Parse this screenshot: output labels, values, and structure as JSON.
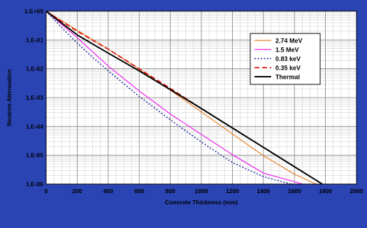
{
  "chart_data": {
    "type": "line",
    "title": "",
    "xlabel": "Concrete Thickness (mm)",
    "ylabel": "Neutron Attenuation",
    "xlim": [
      0,
      2000
    ],
    "x_ticks": [
      0,
      200,
      400,
      600,
      800,
      1000,
      1200,
      1400,
      1600,
      1800,
      2000
    ],
    "x_tick_labels": [
      "0",
      "200",
      "400",
      "600",
      "800",
      "1000",
      "1200",
      "1400",
      "1600",
      "1800",
      "2000"
    ],
    "y_scale": "log",
    "ylim": [
      1e-06,
      1
    ],
    "y_ticks": [
      1e-06,
      1e-05,
      0.0001,
      0.001,
      0.01,
      0.1,
      1
    ],
    "y_tick_labels": [
      "1.E-06",
      "1.E-05",
      "1.E-04",
      "1.E-03",
      "1.E-02",
      "1.E-01",
      "1.E+00"
    ],
    "grid": true,
    "legend_position": "top-right",
    "series": [
      {
        "name": "2.74 MeV",
        "color": "#e8822a",
        "dash": "solid",
        "x": [
          0,
          200,
          400,
          600,
          800,
          1000,
          1200,
          1400,
          1600,
          1740
        ],
        "y": [
          1,
          0.22,
          0.048,
          0.0097,
          0.0018,
          0.00032,
          5.5e-05,
          9.7e-06,
          2.2e-06,
          1e-06
        ]
      },
      {
        "name": "1.5 MeV",
        "color": "#ee22ee",
        "dash": "solid",
        "x": [
          0,
          200,
          400,
          600,
          800,
          1000,
          1200,
          1400,
          1600,
          1650
        ],
        "y": [
          1,
          0.12,
          0.0125,
          0.0017,
          0.00027,
          5.3e-05,
          1.05e-05,
          2.4e-06,
          1.2e-06,
          1e-06
        ]
      },
      {
        "name": "0.83 keV",
        "color": "#1a2a9a",
        "dash": "dotted",
        "x": [
          0,
          100,
          200,
          300,
          400,
          600,
          800,
          1000,
          1200,
          1400,
          1500,
          1580
        ],
        "y": [
          1,
          0.27,
          0.078,
          0.025,
          0.0085,
          0.0011,
          0.00017,
          2.9e-05,
          5.6e-06,
          1.8e-06,
          1.3e-06,
          1e-06
        ]
      },
      {
        "name": "0.35 keV",
        "color": "#dd1111",
        "dash": "dashed",
        "x": [
          0,
          200,
          400,
          600,
          800,
          1000,
          1200,
          1400,
          1600,
          1800,
          1920
        ],
        "y": [
          1,
          0.2,
          0.048,
          0.01,
          0.0021,
          0.00042,
          8.85e-05,
          1.88e-05,
          4e-06,
          8.5e-07,
          4e-07
        ]
      },
      {
        "name": "Thermal",
        "color": "#000000",
        "dash": "solid",
        "x": [
          0,
          200,
          400,
          600,
          800,
          1000,
          1200,
          1400,
          1600,
          1800,
          1900
        ],
        "y": [
          1,
          0.15,
          0.035,
          0.0085,
          0.0019,
          0.00042,
          8.85e-05,
          1.88e-05,
          4e-06,
          8.5e-07,
          3.9e-07
        ]
      }
    ]
  }
}
